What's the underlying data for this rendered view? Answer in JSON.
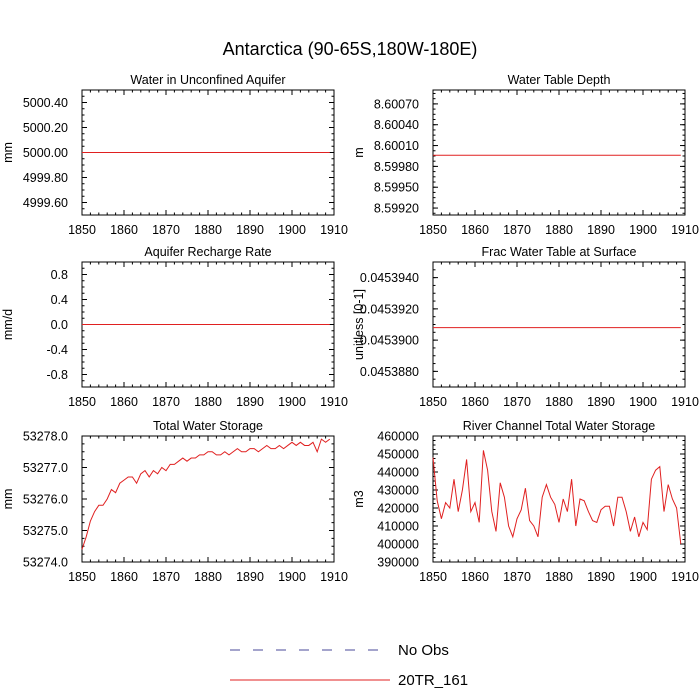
{
  "title": "Antarctica (90-65S,180W-180E)",
  "legend": [
    {
      "label": "No Obs",
      "style": "dashed",
      "color": "#4a4a9a"
    },
    {
      "label": "20TR_161",
      "style": "solid",
      "color": "#e02020"
    }
  ],
  "chart_data": [
    {
      "type": "line",
      "title": "Water in Unconfined Aquifer",
      "xlabel": "",
      "ylabel": "mm",
      "xlim": [
        1850,
        1910
      ],
      "ylim": [
        4999.5,
        5000.5
      ],
      "xticks": [
        1850,
        1860,
        1870,
        1880,
        1890,
        1900,
        1910
      ],
      "yticks": [
        4999.6,
        4999.8,
        5000.0,
        5000.2,
        5000.4
      ],
      "ytick_labels": [
        "4999.60",
        "4999.80",
        "5000.00",
        "5000.20",
        "5000.40"
      ],
      "series": [
        {
          "name": "20TR_161",
          "x": [
            1850,
            1909
          ],
          "values": [
            5000.0,
            5000.0
          ]
        }
      ]
    },
    {
      "type": "line",
      "title": "Water Table Depth",
      "xlabel": "",
      "ylabel": "m",
      "xlim": [
        1850,
        1910
      ],
      "ylim": [
        8.5991,
        8.6009
      ],
      "xticks": [
        1850,
        1860,
        1870,
        1880,
        1890,
        1900,
        1910
      ],
      "yticks": [
        8.5992,
        8.5995,
        8.5998,
        8.6001,
        8.6004,
        8.6007
      ],
      "ytick_labels": [
        "8.59920",
        "8.59950",
        "8.59980",
        "8.60010",
        "8.60040",
        "8.60070"
      ],
      "series": [
        {
          "name": "20TR_161",
          "x": [
            1850,
            1909
          ],
          "values": [
            8.59996,
            8.59996
          ]
        }
      ]
    },
    {
      "type": "line",
      "title": "Aquifer Recharge Rate",
      "xlabel": "",
      "ylabel": "mm/d",
      "xlim": [
        1850,
        1910
      ],
      "ylim": [
        -1.0,
        1.0
      ],
      "xticks": [
        1850,
        1860,
        1870,
        1880,
        1890,
        1900,
        1910
      ],
      "yticks": [
        -0.8,
        -0.4,
        0.0,
        0.4,
        0.8
      ],
      "ytick_labels": [
        "-0.8",
        "-0.4",
        "0.0",
        "0.4",
        "0.8"
      ],
      "series": [
        {
          "name": "20TR_161",
          "x": [
            1850,
            1909
          ],
          "values": [
            0.0,
            0.0
          ]
        }
      ]
    },
    {
      "type": "line",
      "title": "Frac Water Table at Surface",
      "xlabel": "",
      "ylabel": "unitless [0-1]",
      "xlim": [
        1850,
        1910
      ],
      "ylim": [
        0.045387,
        0.045395
      ],
      "xticks": [
        1850,
        1860,
        1870,
        1880,
        1890,
        1900,
        1910
      ],
      "yticks": [
        0.045388,
        0.04539,
        0.045392,
        0.045394
      ],
      "ytick_labels": [
        "0.0453880",
        "0.0453900",
        "0.0453920",
        "0.0453940"
      ],
      "series": [
        {
          "name": "20TR_161",
          "x": [
            1850,
            1909
          ],
          "values": [
            0.0453908,
            0.0453908
          ]
        }
      ]
    },
    {
      "type": "line",
      "title": "Total Water Storage",
      "xlabel": "",
      "ylabel": "mm",
      "xlim": [
        1850,
        1910
      ],
      "ylim": [
        53274.0,
        53278.0
      ],
      "xticks": [
        1850,
        1860,
        1870,
        1880,
        1890,
        1900,
        1910
      ],
      "yticks": [
        53274.0,
        53275.0,
        53276.0,
        53277.0,
        53278.0
      ],
      "ytick_labels": [
        "53274.0",
        "53275.0",
        "53276.0",
        "53277.0",
        "53278.0"
      ],
      "series": [
        {
          "name": "20TR_161",
          "x": [
            1850,
            1851,
            1852,
            1853,
            1854,
            1855,
            1856,
            1857,
            1858,
            1859,
            1860,
            1861,
            1862,
            1863,
            1864,
            1865,
            1866,
            1867,
            1868,
            1869,
            1870,
            1871,
            1872,
            1873,
            1874,
            1875,
            1876,
            1877,
            1878,
            1879,
            1880,
            1881,
            1882,
            1883,
            1884,
            1885,
            1886,
            1887,
            1888,
            1889,
            1890,
            1891,
            1892,
            1893,
            1894,
            1895,
            1896,
            1897,
            1898,
            1899,
            1900,
            1901,
            1902,
            1903,
            1904,
            1905,
            1906,
            1907,
            1908,
            1909
          ],
          "values": [
            53274.4,
            53274.8,
            53275.3,
            53275.6,
            53275.8,
            53275.8,
            53276.0,
            53276.3,
            53276.2,
            53276.5,
            53276.6,
            53276.7,
            53276.7,
            53276.5,
            53276.8,
            53276.9,
            53276.7,
            53276.9,
            53276.8,
            53277.0,
            53276.9,
            53277.1,
            53277.1,
            53277.2,
            53277.3,
            53277.2,
            53277.3,
            53277.3,
            53277.4,
            53277.4,
            53277.5,
            53277.5,
            53277.4,
            53277.4,
            53277.5,
            53277.4,
            53277.5,
            53277.6,
            53277.5,
            53277.5,
            53277.6,
            53277.6,
            53277.5,
            53277.6,
            53277.7,
            53277.6,
            53277.6,
            53277.7,
            53277.6,
            53277.7,
            53277.8,
            53277.7,
            53277.8,
            53277.7,
            53277.7,
            53277.8,
            53277.5,
            53277.9,
            53277.8,
            53277.9
          ]
        }
      ]
    },
    {
      "type": "line",
      "title": "River Channel Total Water Storage",
      "xlabel": "",
      "ylabel": "m3",
      "xlim": [
        1850,
        1910
      ],
      "ylim": [
        390000,
        460000
      ],
      "xticks": [
        1850,
        1860,
        1870,
        1880,
        1890,
        1900,
        1910
      ],
      "yticks": [
        390000,
        400000,
        410000,
        420000,
        430000,
        440000,
        450000,
        460000
      ],
      "ytick_labels": [
        "390000",
        "400000",
        "410000",
        "420000",
        "430000",
        "440000",
        "450000",
        "460000"
      ],
      "series": [
        {
          "name": "20TR_161",
          "x": [
            1850,
            1851,
            1852,
            1853,
            1854,
            1855,
            1856,
            1857,
            1858,
            1859,
            1860,
            1861,
            1862,
            1863,
            1864,
            1865,
            1866,
            1867,
            1868,
            1869,
            1870,
            1871,
            1872,
            1873,
            1874,
            1875,
            1876,
            1877,
            1878,
            1879,
            1880,
            1881,
            1882,
            1883,
            1884,
            1885,
            1886,
            1887,
            1888,
            1889,
            1890,
            1891,
            1892,
            1893,
            1894,
            1895,
            1896,
            1897,
            1898,
            1899,
            1900,
            1901,
            1902,
            1903,
            1904,
            1905,
            1906,
            1907,
            1908,
            1909
          ],
          "values": [
            448000,
            424000,
            414000,
            423000,
            420000,
            436000,
            418000,
            430000,
            447000,
            418000,
            423000,
            412000,
            452000,
            441000,
            418000,
            407000,
            434000,
            426000,
            410000,
            404000,
            414000,
            419000,
            431000,
            413000,
            410000,
            404000,
            426000,
            433000,
            426000,
            422000,
            412000,
            425000,
            418000,
            436000,
            410000,
            425000,
            424000,
            418000,
            413000,
            412000,
            419000,
            421000,
            421000,
            410000,
            426000,
            426000,
            418000,
            407000,
            415000,
            404000,
            412000,
            408000,
            436000,
            441000,
            443000,
            418000,
            433000,
            425000,
            420000,
            400000
          ]
        }
      ]
    }
  ]
}
